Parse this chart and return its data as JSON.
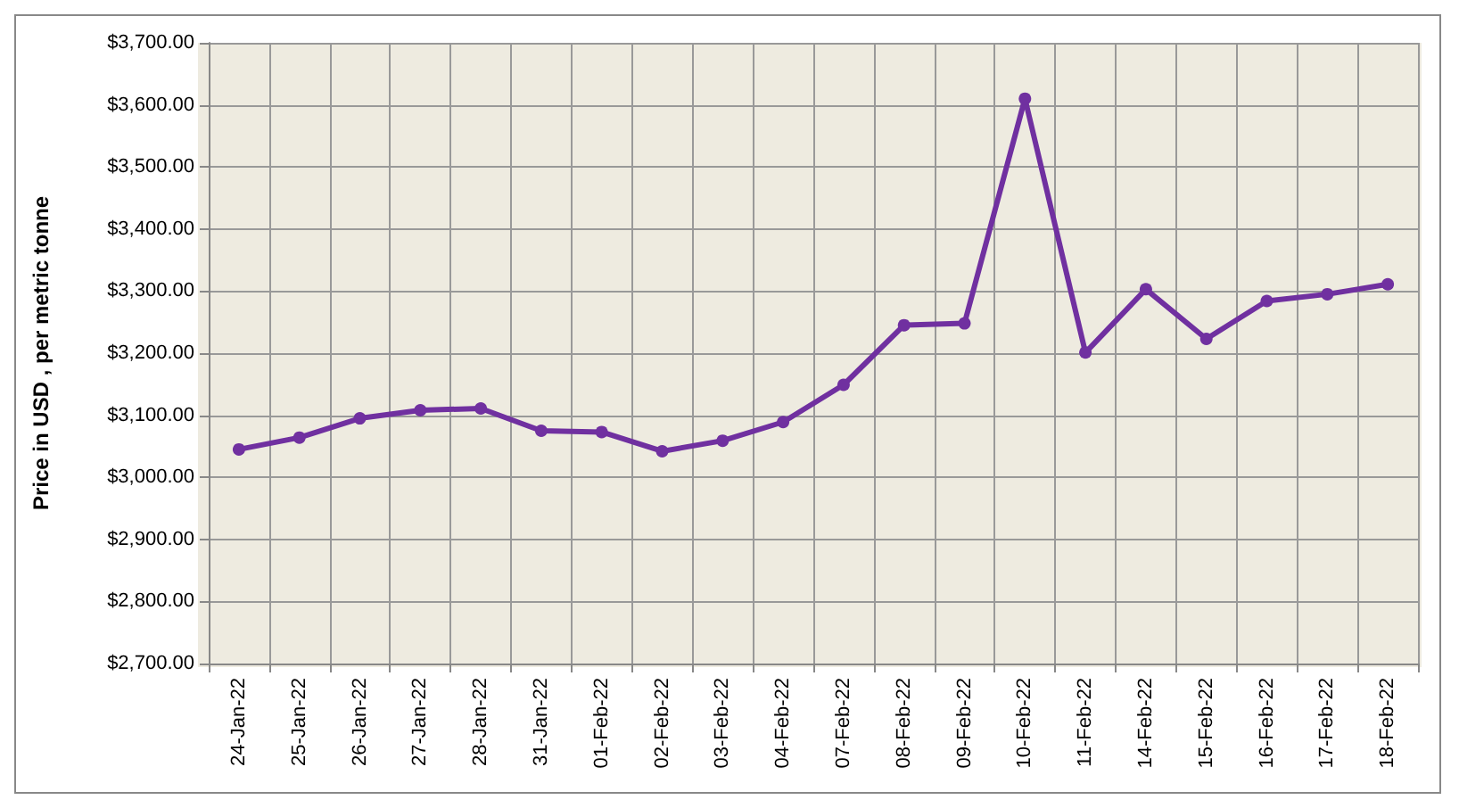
{
  "chart_data": {
    "type": "line",
    "ylabel": "Price in USD , per metric tonne",
    "categories": [
      "24-Jan-22",
      "25-Jan-22",
      "26-Jan-22",
      "27-Jan-22",
      "28-Jan-22",
      "31-Jan-22",
      "01-Feb-22",
      "02-Feb-22",
      "03-Feb-22",
      "04-Feb-22",
      "07-Feb-22",
      "08-Feb-22",
      "09-Feb-22",
      "10-Feb-22",
      "11-Feb-22",
      "14-Feb-22",
      "15-Feb-22",
      "16-Feb-22",
      "17-Feb-22",
      "18-Feb-22"
    ],
    "series": [
      {
        "color": "#7030a0",
        "values": [
          3045,
          3064,
          3095,
          3108,
          3111,
          3075,
          3073,
          3042,
          3059,
          3089,
          3149,
          3245,
          3248,
          3610,
          3201,
          3303,
          3223,
          3284,
          3295,
          3311
        ]
      }
    ],
    "ylim": [
      2700,
      3700
    ],
    "yticks": [
      {
        "value": 2700,
        "label": "$2,700.00"
      },
      {
        "value": 2800,
        "label": "$2,800.00"
      },
      {
        "value": 2900,
        "label": "$2,900.00"
      },
      {
        "value": 3000,
        "label": "$3,000.00"
      },
      {
        "value": 3100,
        "label": "$3,100.00"
      },
      {
        "value": 3200,
        "label": "$3,200.00"
      },
      {
        "value": 3300,
        "label": "$3,300.00"
      },
      {
        "value": 3400,
        "label": "$3,400.00"
      },
      {
        "value": 3500,
        "label": "$3,500.00"
      },
      {
        "value": 3600,
        "label": "$3,600.00"
      },
      {
        "value": 3700,
        "label": "$3,700.00"
      }
    ],
    "grid": true,
    "marker": "circle",
    "line_style": "solid"
  }
}
